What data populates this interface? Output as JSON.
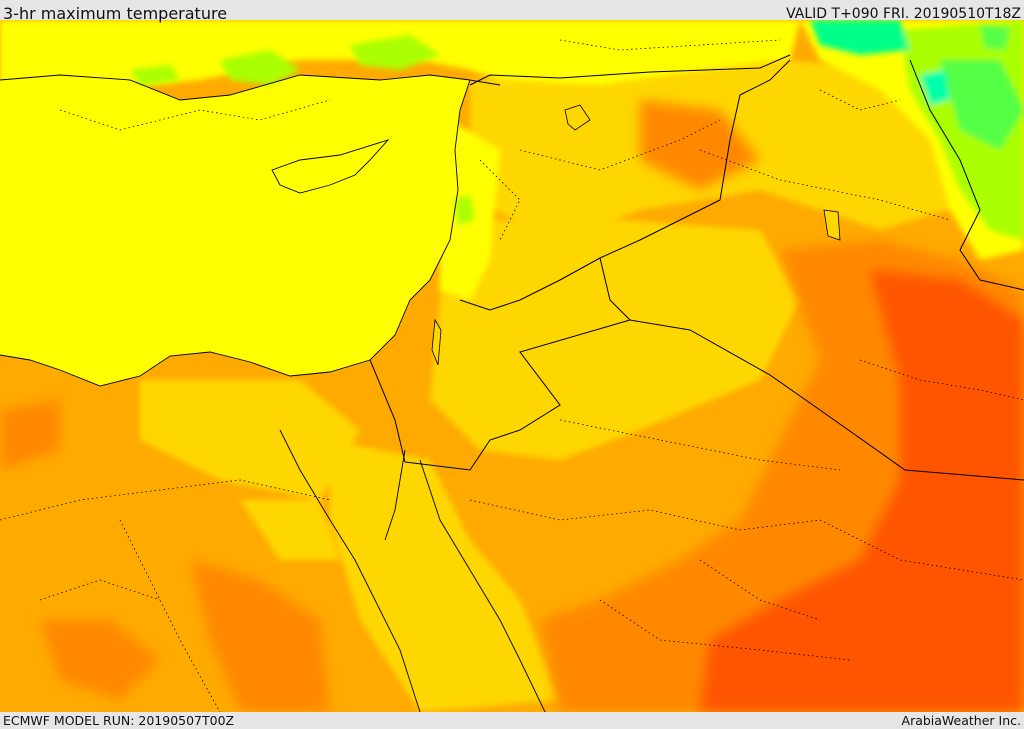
{
  "header": {
    "title": "3-hr maximum temperature",
    "valid": "VALID T+090 FRI. 20190510T18Z"
  },
  "footer": {
    "model_run": "ECMWF MODEL RUN: 20190507T00Z",
    "credit": "ArabiaWeather Inc."
  },
  "colors": {
    "sea_yellow": "#ffff00",
    "light_orange": "#ffd700",
    "orange": "#ffaa00",
    "deep_orange": "#ff8800",
    "red_orange": "#ff5500",
    "green": "#aaff00",
    "cyan": "#00ff88",
    "border": "#000000"
  }
}
